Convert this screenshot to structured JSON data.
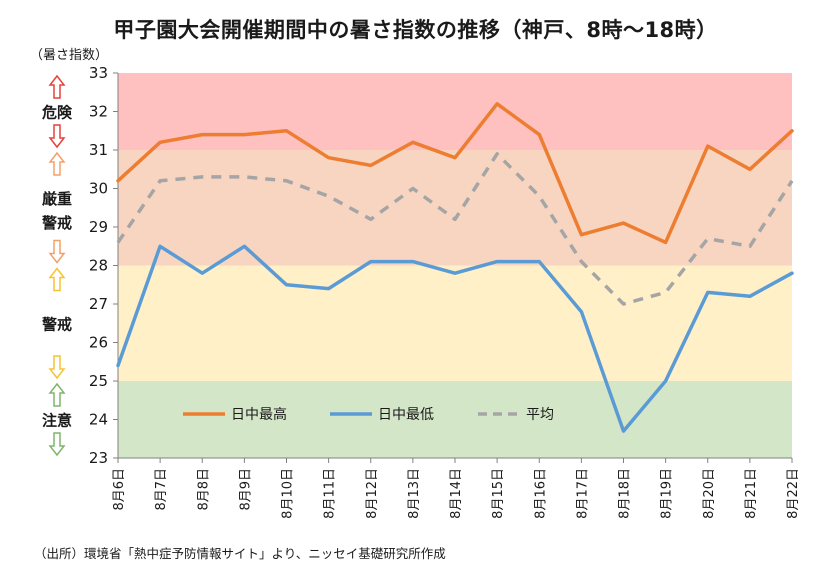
{
  "title": "甲子園大会開催期間中の暑さ指数の推移（神戸、8時～18時）",
  "unit_label": "（暑さ指数）",
  "source": "（出所）環境省「熱中症予防情報サイト」より、ニッセイ基礎研究所作成",
  "chart_data": {
    "type": "line",
    "categories": [
      "8月6日",
      "8月7日",
      "8月8日",
      "8月9日",
      "8月10日",
      "8月11日",
      "8月12日",
      "8月13日",
      "8月14日",
      "8月15日",
      "8月16日",
      "8月17日",
      "8月18日",
      "8月19日",
      "8月20日",
      "8月21日",
      "8月22日"
    ],
    "ylim": [
      23,
      33
    ],
    "yticks": [
      23,
      24,
      25,
      26,
      27,
      28,
      29,
      30,
      31,
      32,
      33
    ],
    "series": [
      {
        "name": "日中最高",
        "color": "#ed7d31",
        "dash": false,
        "values": [
          30.2,
          31.2,
          31.4,
          31.4,
          31.5,
          30.8,
          30.6,
          31.2,
          30.8,
          32.2,
          31.4,
          28.8,
          29.1,
          28.6,
          31.1,
          30.5,
          31.5
        ]
      },
      {
        "name": "日中最低",
        "color": "#5b9bd5",
        "dash": false,
        "values": [
          25.4,
          28.5,
          27.8,
          28.5,
          27.5,
          27.4,
          28.1,
          28.1,
          27.8,
          28.1,
          28.1,
          26.8,
          23.7,
          25.0,
          27.3,
          27.2,
          27.8
        ]
      },
      {
        "name": "平均",
        "color": "#a5a5a5",
        "dash": true,
        "values": [
          28.6,
          30.2,
          30.3,
          30.3,
          30.2,
          29.8,
          29.2,
          30.0,
          29.2,
          30.9,
          29.8,
          28.1,
          27.0,
          27.3,
          28.7,
          28.5,
          30.2
        ]
      }
    ],
    "bands": [
      {
        "from": 31,
        "to": 33,
        "color": "#ffc0c0",
        "label": "危険",
        "arrow_color": "#e8403a"
      },
      {
        "from": 28,
        "to": 31,
        "color": "#f8d5c0",
        "label": "厳重警戒",
        "arrow_color": "#f2a06a"
      },
      {
        "from": 25,
        "to": 28,
        "color": "#fff0c8",
        "label": "警戒",
        "arrow_color": "#f5c430"
      },
      {
        "from": 23,
        "to": 25,
        "color": "#d4e6c8",
        "label": "注意",
        "arrow_color": "#7fb56a"
      }
    ],
    "legend": "inside-bottom-left",
    "grid": false
  }
}
